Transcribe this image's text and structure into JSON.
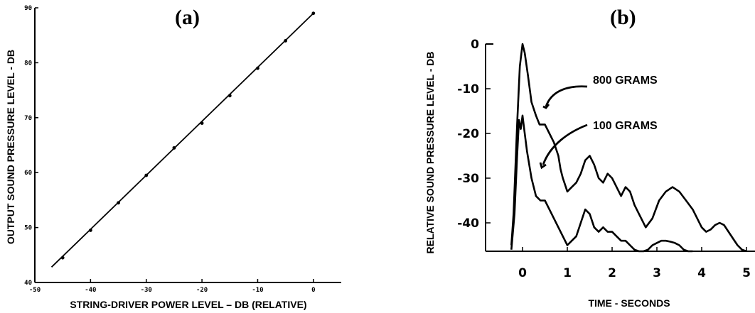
{
  "chart_data": [
    {
      "panel_label": "(a)",
      "type": "scatter",
      "xlabel": "STRING-DRIVER POWER LEVEL – DB (RELATIVE)",
      "ylabel": "OUTPUT SOUND PRESSURE LEVEL - DB",
      "xlim": [
        -50,
        5
      ],
      "ylim": [
        40,
        90
      ],
      "xticks": [
        -50,
        -40,
        -30,
        -20,
        -10,
        0
      ],
      "xtick_labels": [
        "-50",
        "-40",
        "-30",
        "-20",
        "-10",
        "0"
      ],
      "yticks": [
        40,
        50,
        60,
        70,
        80,
        90
      ],
      "ytick_labels": [
        "40",
        "50",
        "60",
        "70",
        "80",
        "90"
      ],
      "grid": false,
      "points": {
        "x": [
          -45,
          -40,
          -35,
          -30,
          -25,
          -20,
          -15,
          -10,
          -5,
          0
        ],
        "y": [
          44.5,
          49.5,
          54.5,
          59.5,
          64.5,
          69,
          74,
          79,
          84,
          89
        ]
      },
      "fit_line": {
        "x": [
          -47,
          0
        ],
        "y": [
          42.8,
          89
        ]
      }
    },
    {
      "panel_label": "(b)",
      "type": "line",
      "xlabel": "TIME - SECONDS",
      "ylabel": "RELATIVE SOUND PRESSURE LEVEL - DB",
      "xlim": [
        -0.5,
        5
      ],
      "ylim": [
        -45,
        0
      ],
      "xticks": [
        0,
        1,
        2,
        3,
        4,
        5
      ],
      "xtick_labels": [
        "0",
        "1",
        "2",
        "3",
        "4",
        "5"
      ],
      "yticks": [
        0,
        -10,
        -20,
        -30,
        -40
      ],
      "ytick_labels": [
        "0",
        "-10",
        "-20",
        "-30",
        "-40"
      ],
      "grid": false,
      "series": [
        {
          "name": "800 GRAMS",
          "x": [
            -0.25,
            -0.2,
            -0.12,
            -0.06,
            0,
            0.05,
            0.12,
            0.2,
            0.3,
            0.38,
            0.43,
            0.5,
            0.6,
            0.7,
            0.8,
            0.85,
            0.9,
            0.95,
            1.0,
            1.1,
            1.2,
            1.3,
            1.4,
            1.5,
            1.6,
            1.7,
            1.8,
            1.9,
            2.0,
            2.1,
            2.2,
            2.3,
            2.4,
            2.5,
            2.6,
            2.75,
            2.9,
            3.05,
            3.2,
            3.35,
            3.5,
            3.65,
            3.8,
            3.9,
            4.0,
            4.1,
            4.2,
            4.3,
            4.4,
            4.5,
            4.6,
            4.7,
            4.8,
            4.9,
            5.0
          ],
          "y": [
            -45,
            -38,
            -18,
            -5,
            0,
            -2,
            -7,
            -13,
            -16,
            -18,
            -18,
            -18,
            -20,
            -22,
            -25,
            -28,
            -30,
            -31.5,
            -33,
            -32,
            -31,
            -29,
            -26,
            -25,
            -27,
            -30,
            -31,
            -29,
            -30,
            -32,
            -34,
            -32,
            -33,
            -36,
            -38,
            -41,
            -39,
            -35,
            -33,
            -32,
            -33,
            -35,
            -37,
            -39,
            -41,
            -42,
            -41.5,
            -40.5,
            -40,
            -40.5,
            -42,
            -43.5,
            -45,
            -46,
            -47
          ]
        },
        {
          "name": "100 GRAMS",
          "x": [
            -0.25,
            -0.18,
            -0.12,
            -0.08,
            -0.04,
            0,
            0.05,
            0.1,
            0.2,
            0.3,
            0.4,
            0.5,
            0.6,
            0.7,
            0.8,
            0.9,
            1.0,
            1.1,
            1.2,
            1.3,
            1.4,
            1.5,
            1.6,
            1.7,
            1.8,
            1.9,
            2.0,
            2.1,
            2.2,
            2.3,
            2.4,
            2.5,
            2.6,
            2.7,
            2.8,
            2.9,
            3.0,
            3.1,
            3.2,
            3.3,
            3.4,
            3.5,
            3.6,
            3.7,
            3.8
          ],
          "y": [
            -46,
            -38,
            -25,
            -17,
            -19,
            -16,
            -20,
            -24,
            -30,
            -34,
            -35,
            -35,
            -37,
            -39,
            -41,
            -43,
            -45,
            -44,
            -43,
            -40,
            -37,
            -38,
            -41,
            -42,
            -41,
            -42,
            -42,
            -43,
            -44,
            -44,
            -45,
            -46,
            -47,
            -47,
            -46,
            -45,
            -44.5,
            -44,
            -44,
            -44.2,
            -44.5,
            -45,
            -46,
            -47,
            -48
          ]
        }
      ],
      "annotations": [
        "800 GRAMS",
        "100 GRAMS"
      ]
    }
  ]
}
